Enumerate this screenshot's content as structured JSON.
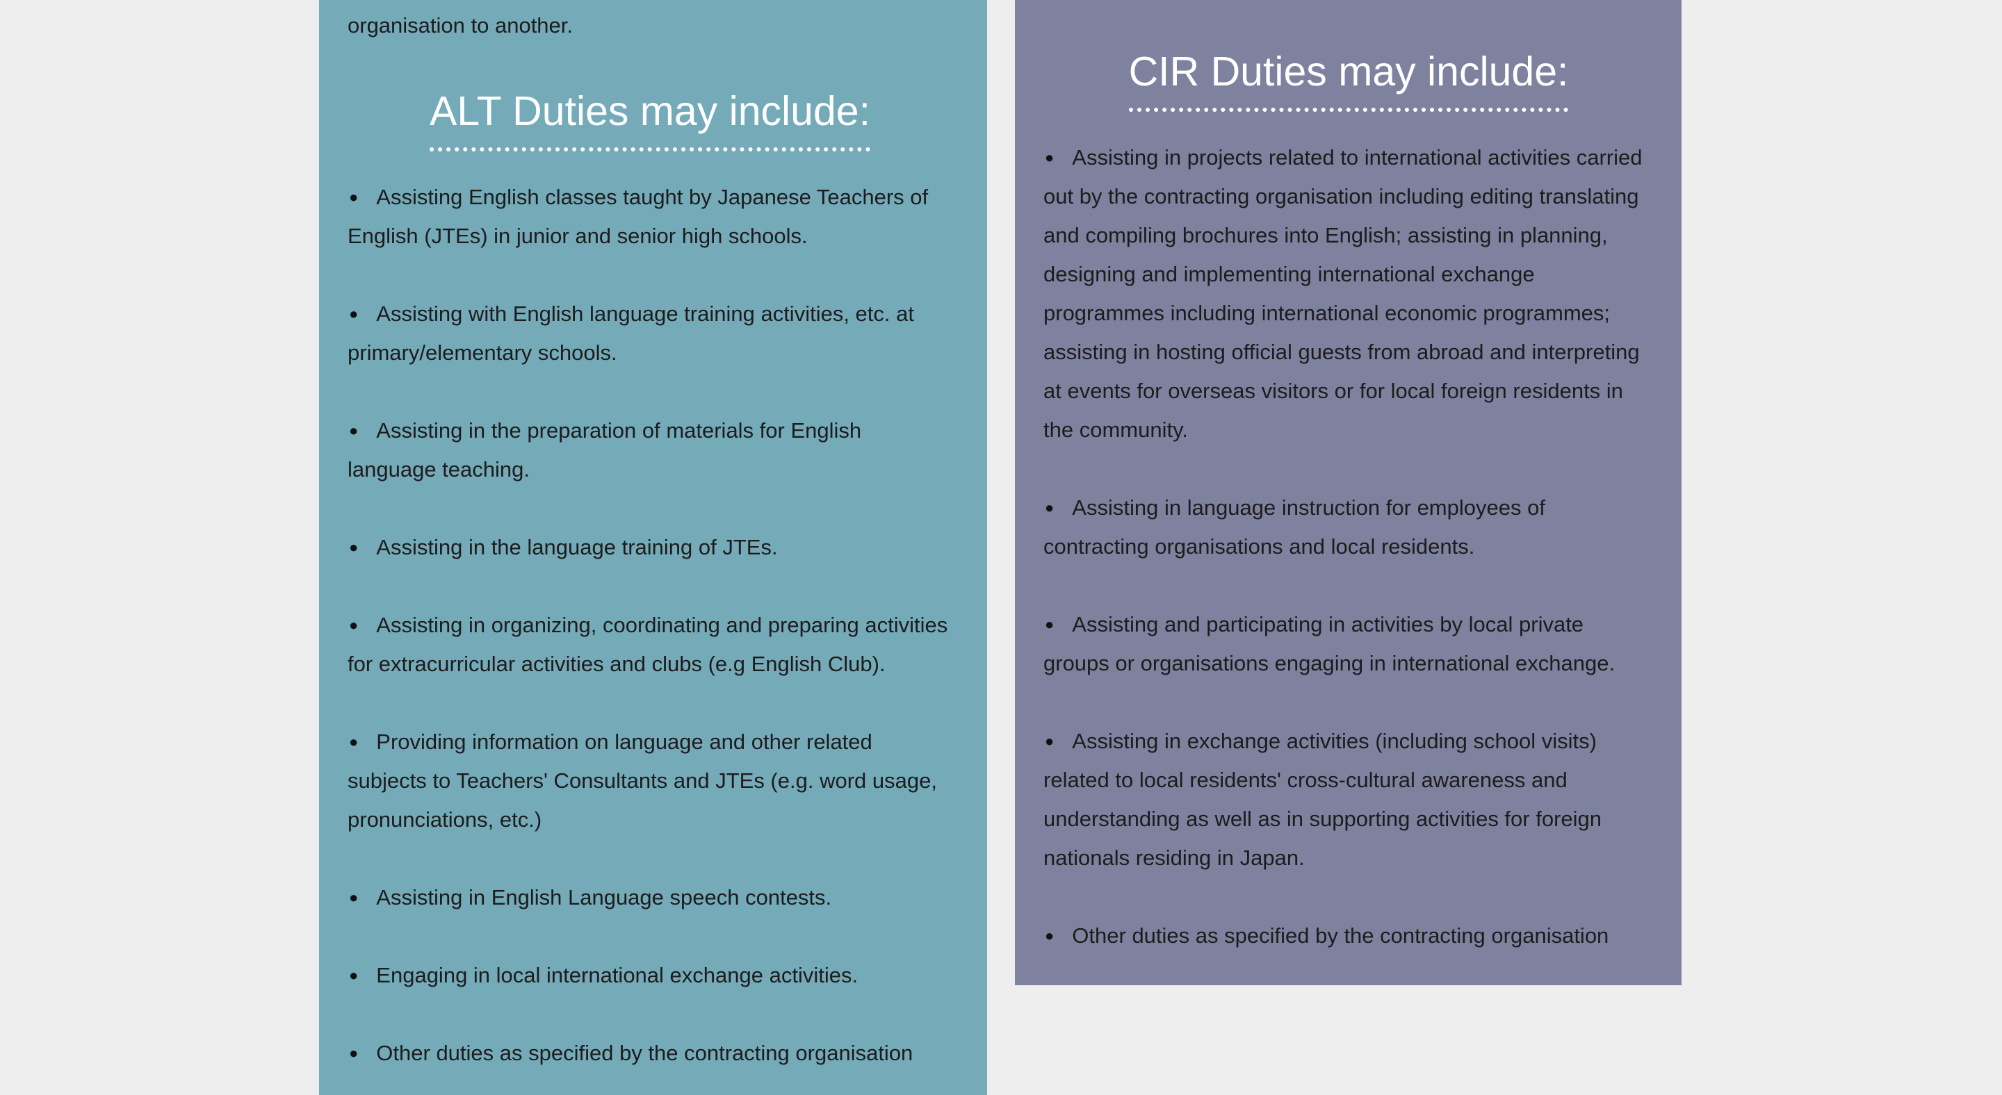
{
  "intro_text": "organisation to another.",
  "alt": {
    "heading": "ALT Duties may include:",
    "items": [
      "Assisting English classes taught by Japanese Teachers of English (JTEs) in junior and senior high schools.",
      "Assisting with English language training activities, etc. at primary/elementary schools.",
      "Assisting in the preparation of materials for English language teaching.",
      "Assisting in the language training of JTEs.",
      "Assisting in organizing, coordinating and preparing activities for extracurricular activities and clubs (e.g English Club).",
      "Providing information on language and other related subjects to Teachers' Consultants and JTEs (e.g. word usage, pronunciations, etc.)",
      "Assisting in English Language speech contests.",
      "Engaging in local international exchange activities.",
      "Other duties as specified by the contracting organisation"
    ]
  },
  "cir": {
    "heading": "CIR Duties may include:",
    "items": [
      "Assisting in projects related to international activities carried out by the contracting organisation including editing translating and compiling brochures into English; assisting in planning, designing and implementing international exchange programmes including international economic programmes; assisting in hosting official guests from abroad and interpreting at events for overseas visitors or for local foreign residents in the community.",
      "Assisting in language instruction for employees of contracting organisations and local residents.",
      "Assisting and participating in activities by local private groups or organisations engaging in international exchange.",
      "Assisting in exchange activities (including school visits) related to local residents' cross-cultural awareness and understanding as well as in supporting activities for foreign nationals residing in Japan.",
      "Other duties as specified by the contracting organisation"
    ]
  }
}
